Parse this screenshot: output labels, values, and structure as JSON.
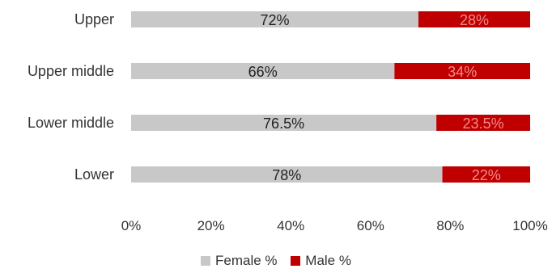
{
  "chart_data": {
    "type": "bar",
    "orientation": "horizontal",
    "stacked": true,
    "percent": true,
    "categories": [
      "Upper",
      "Upper middle",
      "Lower middle",
      "Lower"
    ],
    "series": [
      {
        "name": "Female %",
        "values": [
          72,
          66,
          76.5,
          78
        ],
        "labels": [
          "72%",
          "66%",
          "76.5%",
          "78%"
        ],
        "color": "#c8c8c8"
      },
      {
        "name": "Male %",
        "values": [
          28,
          34,
          23.5,
          22
        ],
        "labels": [
          "28%",
          "34%",
          "23.5%",
          "22%"
        ],
        "color": "#c00000"
      }
    ],
    "xlim": [
      0,
      100
    ],
    "xticks": [
      {
        "value": 0,
        "label": "0%"
      },
      {
        "value": 20,
        "label": "20%"
      },
      {
        "value": 40,
        "label": "40%"
      },
      {
        "value": 60,
        "label": "60%"
      },
      {
        "value": 80,
        "label": "80%"
      },
      {
        "value": 100,
        "label": "100%"
      }
    ],
    "grid": false,
    "legend": {
      "position": "bottom",
      "items": [
        "Female %",
        "Male %"
      ]
    }
  }
}
